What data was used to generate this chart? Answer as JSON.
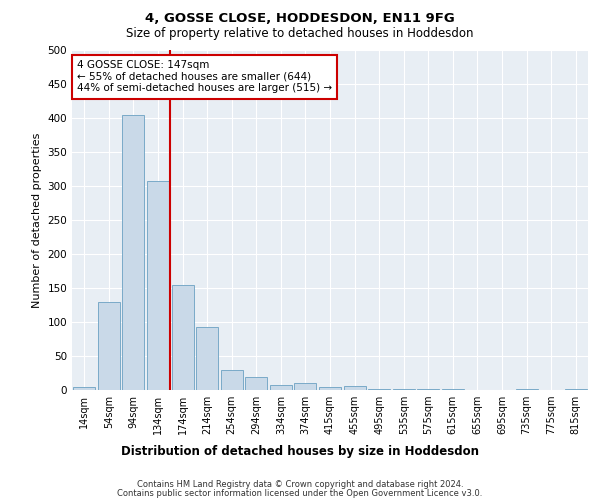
{
  "title1": "4, GOSSE CLOSE, HODDESDON, EN11 9FG",
  "title2": "Size of property relative to detached houses in Hoddesdon",
  "xlabel": "Distribution of detached houses by size in Hoddesdon",
  "ylabel": "Number of detached properties",
  "categories": [
    "14sqm",
    "54sqm",
    "94sqm",
    "134sqm",
    "174sqm",
    "214sqm",
    "254sqm",
    "294sqm",
    "334sqm",
    "374sqm",
    "415sqm",
    "455sqm",
    "495sqm",
    "535sqm",
    "575sqm",
    "615sqm",
    "655sqm",
    "695sqm",
    "735sqm",
    "775sqm",
    "815sqm"
  ],
  "values": [
    5,
    130,
    405,
    308,
    155,
    92,
    29,
    19,
    8,
    11,
    5,
    6,
    2,
    1,
    1,
    1,
    0,
    0,
    1,
    0,
    1
  ],
  "bar_color": "#c9d9e8",
  "bar_edgecolor": "#7aaac8",
  "redline_x": 3.5,
  "annotation_text": "4 GOSSE CLOSE: 147sqm\n← 55% of detached houses are smaller (644)\n44% of semi-detached houses are larger (515) →",
  "annotation_box_color": "#ffffff",
  "annotation_box_edgecolor": "#cc0000",
  "redline_color": "#cc0000",
  "footer1": "Contains HM Land Registry data © Crown copyright and database right 2024.",
  "footer2": "Contains public sector information licensed under the Open Government Licence v3.0.",
  "ylim": [
    0,
    500
  ],
  "yticks": [
    0,
    50,
    100,
    150,
    200,
    250,
    300,
    350,
    400,
    450,
    500
  ],
  "plot_bg_color": "#e8eef4"
}
